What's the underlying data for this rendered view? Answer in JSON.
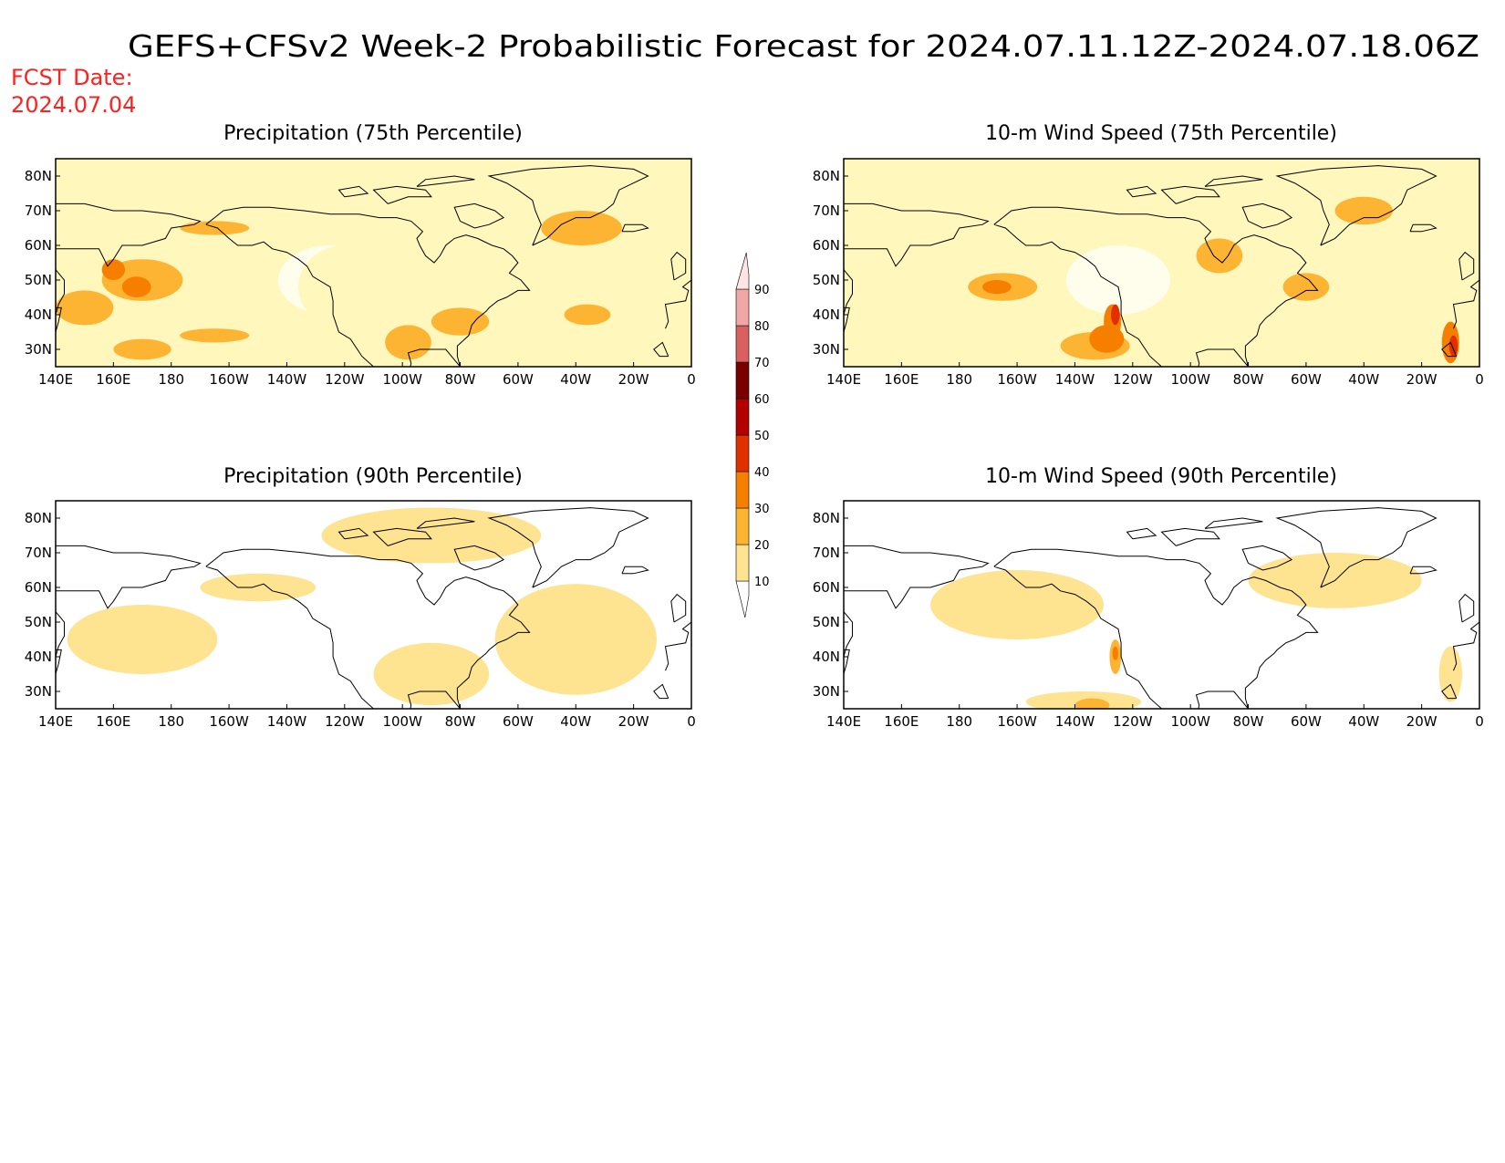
{
  "figure": {
    "title": "GEFS+CFSv2 Week-2 Probabilistic Forecast for 2024.07.11.12Z-2024.07.18.06Z",
    "fcst_label": "FCST Date:",
    "fcst_date": "2024.07.04"
  },
  "panels": [
    {
      "title": "Precipitation (75th Percentile)",
      "variable": "precipitation",
      "percentile": 75
    },
    {
      "title": "10-m Wind Speed (75th Percentile)",
      "variable": "wind",
      "percentile": 75
    },
    {
      "title": "Precipitation (90th Percentile)",
      "variable": "precipitation",
      "percentile": 90
    },
    {
      "title": "10-m Wind Speed (90th Percentile)",
      "variable": "wind",
      "percentile": 90
    }
  ],
  "axes": {
    "lat_labels": [
      "80N",
      "70N",
      "60N",
      "50N",
      "40N",
      "30N"
    ],
    "lat_values": [
      80,
      70,
      60,
      50,
      40,
      30
    ],
    "lat_range": [
      25,
      85
    ],
    "lon_labels": [
      "140E",
      "160E",
      "180",
      "160W",
      "140W",
      "120W",
      "100W",
      "80W",
      "60W",
      "40W",
      "20W",
      "0"
    ],
    "lon_values": [
      140,
      160,
      180,
      200,
      220,
      240,
      260,
      280,
      300,
      320,
      340,
      360
    ],
    "lon_range": [
      140,
      360
    ]
  },
  "colorbar": {
    "levels": [
      10,
      20,
      30,
      40,
      50,
      60,
      70,
      80,
      90
    ],
    "labels": [
      "10",
      "20",
      "30",
      "40",
      "50",
      "60",
      "70",
      "80",
      "90"
    ],
    "colors": [
      "#fff7bc",
      "#fee391",
      "#fdb432",
      "#f77f00",
      "#e03000",
      "#b20000",
      "#7a0000",
      "#d96060",
      "#f2a7a7",
      "#ffe4e4"
    ]
  },
  "fields": {
    "precip75": [
      {
        "lon": 170,
        "lat": 50,
        "rx": 14,
        "ry": 6,
        "level": 30
      },
      {
        "lon": 168,
        "lat": 48,
        "rx": 5,
        "ry": 3,
        "level": 40
      },
      {
        "lon": 160,
        "lat": 53,
        "rx": 4,
        "ry": 3,
        "level": 40
      },
      {
        "lon": 150,
        "lat": 42,
        "rx": 10,
        "ry": 5,
        "level": 30
      },
      {
        "lon": 195,
        "lat": 34,
        "rx": 12,
        "ry": 2,
        "level": 30
      },
      {
        "lon": 170,
        "lat": 30,
        "rx": 10,
        "ry": 3,
        "level": 30
      },
      {
        "lon": 195,
        "lat": 65,
        "rx": 12,
        "ry": 2,
        "level": 30
      },
      {
        "lon": 322,
        "lat": 65,
        "rx": 14,
        "ry": 5,
        "level": 30
      },
      {
        "lon": 324,
        "lat": 40,
        "rx": 8,
        "ry": 3,
        "level": 30
      },
      {
        "lon": 280,
        "lat": 38,
        "rx": 10,
        "ry": 4,
        "level": 30
      },
      {
        "lon": 262,
        "lat": 32,
        "rx": 8,
        "ry": 5,
        "level": 30
      },
      {
        "lon": 240,
        "lat": 48,
        "rx": 16,
        "ry": 12,
        "level": 10
      },
      {
        "lon": 345,
        "lat": 40,
        "rx": 10,
        "ry": 8,
        "level": 10
      }
    ],
    "precip90": [
      {
        "lon": 170,
        "lat": 45,
        "rx": 26,
        "ry": 10,
        "level": 20
      },
      {
        "lon": 320,
        "lat": 45,
        "rx": 28,
        "ry": 16,
        "level": 20
      },
      {
        "lon": 270,
        "lat": 35,
        "rx": 20,
        "ry": 9,
        "level": 20
      },
      {
        "lon": 270,
        "lat": 75,
        "rx": 38,
        "ry": 8,
        "level": 20
      },
      {
        "lon": 210,
        "lat": 60,
        "rx": 20,
        "ry": 4,
        "level": 20
      }
    ],
    "wind75": [
      {
        "lon": 195,
        "lat": 48,
        "rx": 12,
        "ry": 4,
        "level": 30
      },
      {
        "lon": 193,
        "lat": 48,
        "rx": 5,
        "ry": 2,
        "level": 40
      },
      {
        "lon": 227,
        "lat": 31,
        "rx": 12,
        "ry": 4,
        "level": 30
      },
      {
        "lon": 231,
        "lat": 33,
        "rx": 6,
        "ry": 4,
        "level": 40
      },
      {
        "lon": 233,
        "lat": 38,
        "rx": 3,
        "ry": 5,
        "level": 40
      },
      {
        "lon": 234,
        "lat": 40,
        "rx": 1.5,
        "ry": 3,
        "level": 50
      },
      {
        "lon": 320,
        "lat": 70,
        "rx": 10,
        "ry": 4,
        "level": 30
      },
      {
        "lon": 270,
        "lat": 57,
        "rx": 8,
        "ry": 5,
        "level": 30
      },
      {
        "lon": 300,
        "lat": 48,
        "rx": 8,
        "ry": 4,
        "level": 30
      },
      {
        "lon": 350,
        "lat": 32,
        "rx": 3,
        "ry": 6,
        "level": 40
      },
      {
        "lon": 351,
        "lat": 31,
        "rx": 1.5,
        "ry": 3,
        "level": 50
      },
      {
        "lon": 210,
        "lat": 37,
        "rx": 8,
        "ry": 2.5,
        "level": 10
      }
    ],
    "wind90": [
      {
        "lon": 200,
        "lat": 55,
        "rx": 30,
        "ry": 10,
        "level": 20
      },
      {
        "lon": 223,
        "lat": 27,
        "rx": 20,
        "ry": 3,
        "level": 20
      },
      {
        "lon": 226,
        "lat": 26,
        "rx": 6,
        "ry": 2,
        "level": 30
      },
      {
        "lon": 234,
        "lat": 40,
        "rx": 2,
        "ry": 5,
        "level": 30
      },
      {
        "lon": 234,
        "lat": 41,
        "rx": 1,
        "ry": 2,
        "level": 40
      },
      {
        "lon": 310,
        "lat": 62,
        "rx": 30,
        "ry": 8,
        "level": 20
      },
      {
        "lon": 350,
        "lat": 35,
        "rx": 4,
        "ry": 8,
        "level": 20
      }
    ]
  }
}
